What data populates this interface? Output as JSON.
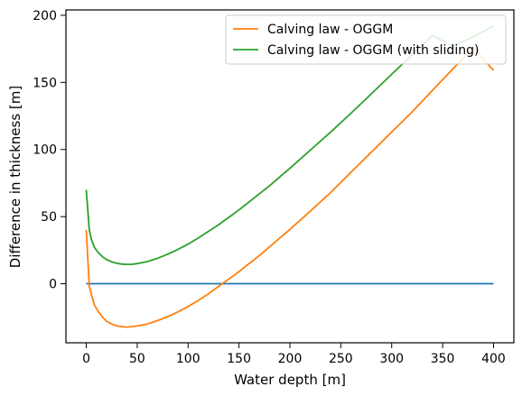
{
  "chart_data": {
    "type": "line",
    "title": "",
    "xlabel": "Water depth [m]",
    "ylabel": "Difference in thickness [m]",
    "xlim": [
      -20,
      420
    ],
    "ylim": [
      -44,
      204
    ],
    "xticks": [
      0,
      50,
      100,
      150,
      200,
      250,
      300,
      350,
      400
    ],
    "yticks": [
      0,
      50,
      100,
      150,
      200
    ],
    "grid": false,
    "legend": "top-right",
    "series": [
      {
        "name": "",
        "color": "#1f77b4",
        "legend": false,
        "x": [
          0,
          400
        ],
        "y": [
          0,
          0
        ]
      },
      {
        "name": "Calving law - OGGM",
        "color": "#ff7f0e",
        "legend": true,
        "x": [
          0,
          3,
          5,
          8,
          12,
          16,
          20,
          25,
          30,
          35,
          40,
          45,
          50,
          60,
          70,
          80,
          90,
          100,
          110,
          120,
          130,
          140,
          150,
          160,
          170,
          180,
          190,
          200,
          220,
          240,
          260,
          280,
          300,
          320,
          340,
          360,
          380,
          400
        ],
        "y": [
          40,
          -2,
          -8,
          -16,
          -21,
          -25,
          -28,
          -30,
          -31.5,
          -32,
          -32.3,
          -32,
          -31.5,
          -30,
          -27.5,
          -24.5,
          -21,
          -17,
          -12.5,
          -7.5,
          -2,
          3.5,
          9,
          15,
          21,
          27.5,
          34,
          40.5,
          54,
          68,
          83,
          98,
          113,
          128,
          144,
          160,
          176,
          159
        ]
      },
      {
        "name": "Calving law - OGGM (with sliding)",
        "color": "#2ca02c",
        "legend": true,
        "x": [
          0,
          3,
          5,
          8,
          12,
          16,
          20,
          25,
          30,
          35,
          40,
          45,
          50,
          60,
          70,
          80,
          90,
          100,
          110,
          120,
          130,
          140,
          150,
          160,
          170,
          180,
          190,
          200,
          220,
          240,
          260,
          280,
          300,
          320,
          340,
          360,
          380,
          400
        ],
        "y": [
          70,
          40,
          33,
          27,
          23,
          20,
          18,
          16.3,
          15.2,
          14.6,
          14.4,
          14.5,
          15,
          16.5,
          19,
          22,
          25.5,
          29.5,
          34,
          39,
          44,
          49.5,
          55,
          61,
          67,
          73,
          79.5,
          86,
          99.5,
          113,
          127,
          141.5,
          156,
          170.5,
          185,
          177,
          184,
          192
        ]
      }
    ]
  }
}
